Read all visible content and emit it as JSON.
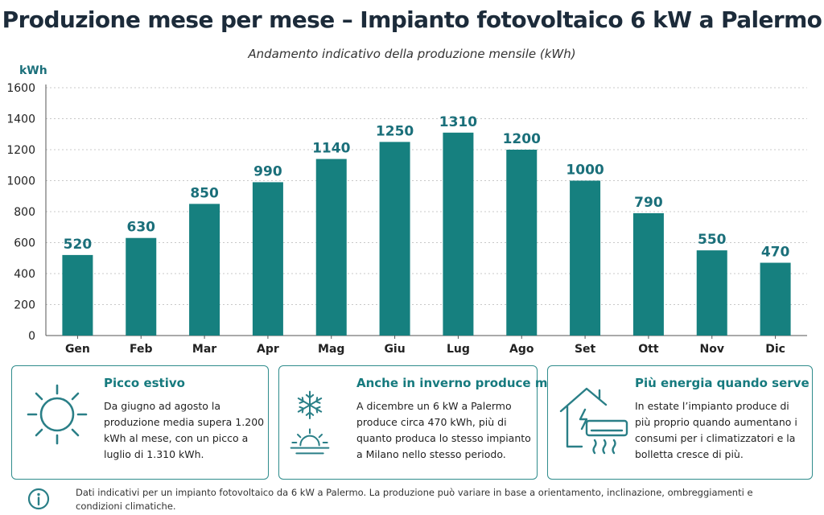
{
  "chart_data": {
    "type": "bar",
    "title": "Produzione mese per mese – Impianto fotovoltaico 6 kW a Palermo",
    "subtitle": "Andamento indicativo della produzione mensile (kWh)",
    "ylabel": "kWh",
    "xlabel": "",
    "categories": [
      "Gen",
      "Feb",
      "Mar",
      "Apr",
      "Mag",
      "Giu",
      "Lug",
      "Ago",
      "Set",
      "Ott",
      "Nov",
      "Dic"
    ],
    "values": [
      520,
      630,
      850,
      990,
      1140,
      1250,
      1310,
      1200,
      1000,
      790,
      550,
      470
    ],
    "ylim": [
      0,
      1600
    ],
    "yticks": [
      0,
      200,
      400,
      600,
      800,
      1000,
      1200,
      1400,
      1600
    ],
    "grid": true,
    "bar_color": "#16807f",
    "label_color": "#1a6f7a"
  },
  "cards": [
    {
      "icon": "sun-icon",
      "title": "Picco estivo",
      "text": "Da giugno ad agosto la produzione media supera 1.200 kWh al mese, con un picco a luglio di 1.310 kWh."
    },
    {
      "icon": "snowflake-sunrise-icon",
      "title": "Anche in inverno produce molto",
      "text": "A dicembre un 6 kW a Palermo produce circa 470 kWh, più di quanto produca lo stesso impianto a Milano nello stesso periodo."
    },
    {
      "icon": "house-air-conditioner-icon",
      "title": "Più energia quando serve",
      "text": "In estate l’impianto produce di più proprio quando aumentano i consumi per i climatizzatori e la bolletta cresce di più."
    }
  ],
  "footer": {
    "icon": "info-icon",
    "note": "Dati indicativi per un impianto fotovoltaico da 6 kW a Palermo. La produzione può variare in base a orientamento, inclinazione, ombreggiamenti e condizioni climatiche."
  },
  "colors": {
    "accent": "#16807f",
    "card_border": "#2f8c8c",
    "heading": "#167a7e"
  }
}
